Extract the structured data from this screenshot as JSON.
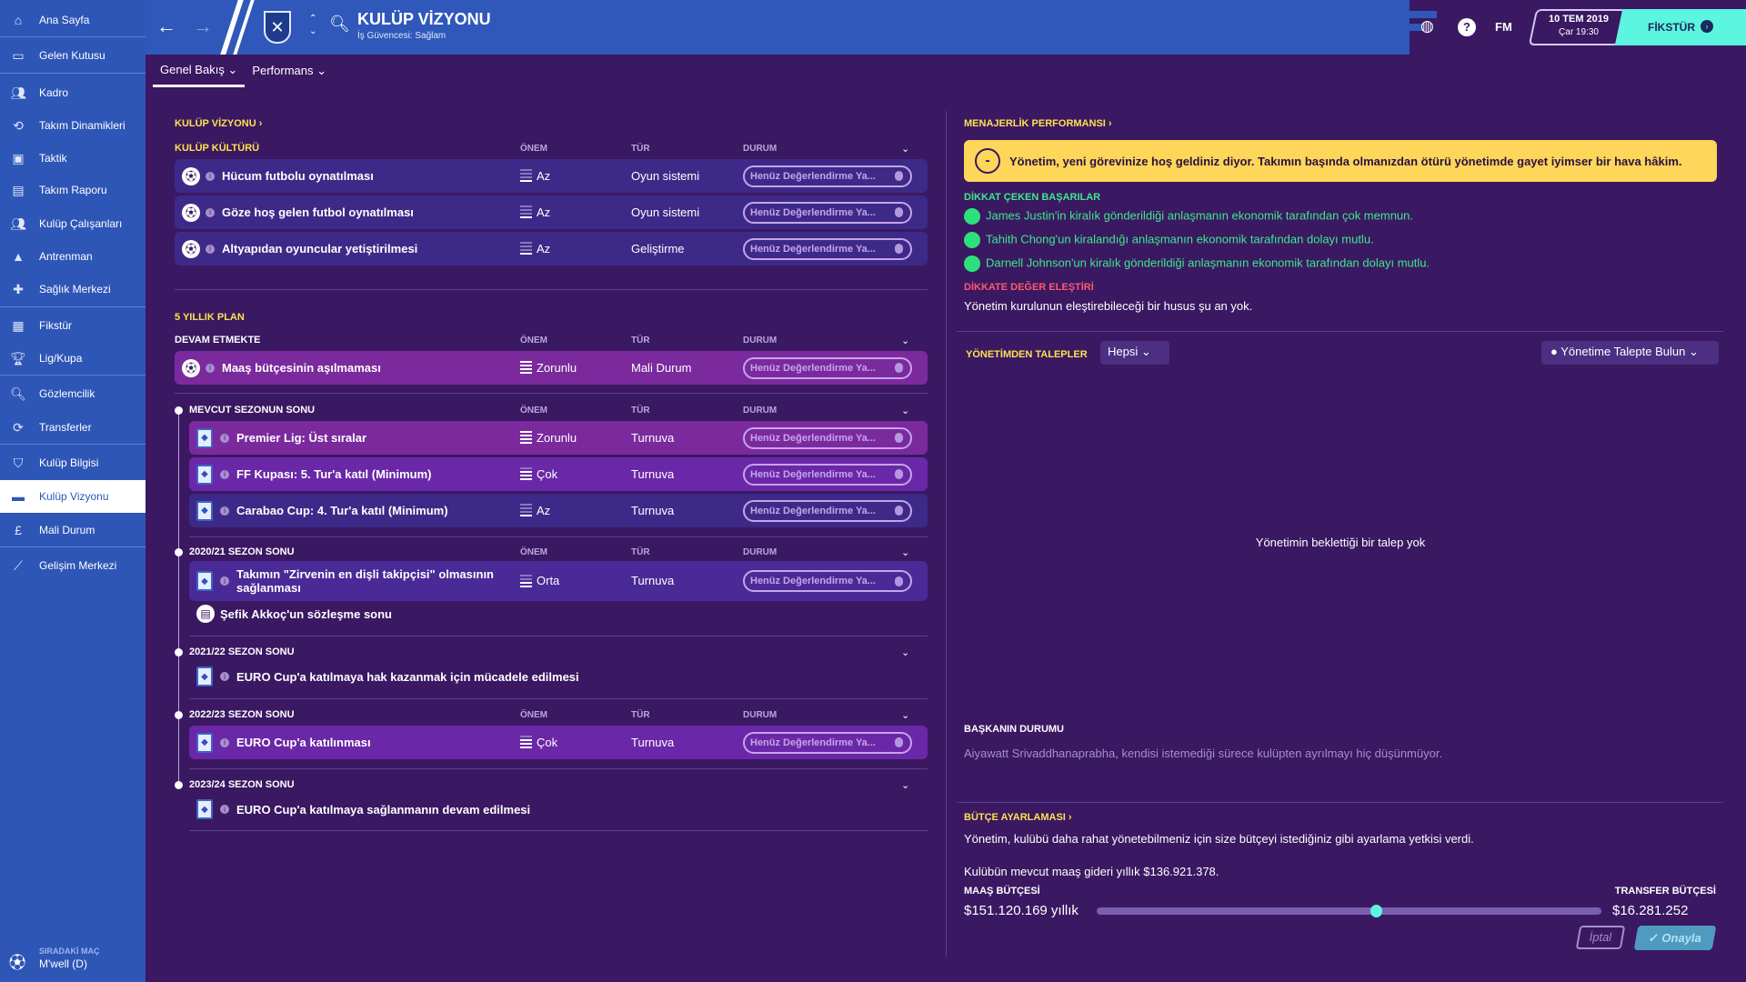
{
  "sidebar": {
    "items": [
      {
        "label": "Ana Sayfa",
        "icon": "home-icon"
      },
      {
        "label": "Gelen Kutusu",
        "icon": "inbox-icon"
      },
      {
        "label": "Kadro",
        "icon": "squad-icon"
      },
      {
        "label": "Takım Dinamikleri",
        "icon": "dynamics-icon"
      },
      {
        "label": "Taktik",
        "icon": "tactics-icon"
      },
      {
        "label": "Takım Raporu",
        "icon": "report-icon"
      },
      {
        "label": "Kulüp Çalışanları",
        "icon": "staff-icon"
      },
      {
        "label": "Antrenman",
        "icon": "training-icon"
      },
      {
        "label": "Sağlık Merkezi",
        "icon": "medical-icon"
      },
      {
        "label": "Fikstür",
        "icon": "calendar-icon"
      },
      {
        "label": "Lig/Kupa",
        "icon": "trophy-icon"
      },
      {
        "label": "Gözlemcilik",
        "icon": "search-icon"
      },
      {
        "label": "Transferler",
        "icon": "transfer-icon"
      },
      {
        "label": "Kulüp Bilgisi",
        "icon": "shield-icon"
      },
      {
        "label": "Kulüp Vizyonu",
        "icon": "briefcase-icon",
        "active": true
      },
      {
        "label": "Mali Durum",
        "icon": "money-icon"
      },
      {
        "label": "Gelişim Merkezi",
        "icon": "development-icon"
      }
    ],
    "next_match_label": "SIRADAKİ MAÇ",
    "next_match": "M'well (D)"
  },
  "header": {
    "title": "KULÜP VİZYONU",
    "subtitle": "İş Güvencesi: Sağlam",
    "fm": "FM",
    "date": "10 TEM 2019",
    "time": "Çar 19:30",
    "continue": "FİKSTÜR"
  },
  "tabs": [
    {
      "label": "Genel Bakış ⌄"
    },
    {
      "label": "Performans ⌄"
    }
  ],
  "left": {
    "vision_title": "KULÜP VİZYONU ›",
    "columns": {
      "importance": "ÖNEM",
      "type": "TÜR",
      "status": "DURUM"
    },
    "status_text": "Henüz Değerlendirme Ya...",
    "culture_title": "KULÜP KÜLTÜRÜ",
    "culture": [
      {
        "text": "Hücum futbolu oynatılması",
        "importance": "Az",
        "type": "Oyun sistemi"
      },
      {
        "text": "Göze hoş gelen futbol oynatılması",
        "importance": "Az",
        "type": "Oyun sistemi"
      },
      {
        "text": "Altyapıdan oyuncular yetiştirilmesi",
        "importance": "Az",
        "type": "Geliştirme"
      }
    ],
    "plan_title": "5 YILLIK PLAN",
    "ongoing_title": "DEVAM ETMEKTE",
    "ongoing": [
      {
        "text": "Maaş bütçesinin aşılmaması",
        "importance": "Zorunlu",
        "type": "Mali Durum"
      }
    ],
    "current_title": "MEVCUT SEZONUN SONU",
    "current": [
      {
        "text": "Premier Lig: Üst sıralar",
        "importance": "Zorunlu",
        "type": "Turnuva"
      },
      {
        "text": "FF Kupası: 5. Tur'a katıl (Minimum)",
        "importance": "Çok",
        "type": "Turnuva"
      },
      {
        "text": "Carabao Cup: 4. Tur'a katıl (Minimum)",
        "importance": "Az",
        "type": "Turnuva"
      }
    ],
    "s2021_title": "2020/21 SEZON SONU",
    "s2021": [
      {
        "text": "Takımın \"Zirvenin en dişli takipçisi\" olmasının sağlanması",
        "importance": "Orta",
        "type": "Turnuva"
      }
    ],
    "s2021_note": "Şefik Akkoç'un sözleşme sonu",
    "s2122_title": "2021/22 SEZON SONU",
    "s2122": "EURO Cup'a katılmaya hak kazanmak için mücadele edilmesi",
    "s2223_title": "2022/23 SEZON SONU",
    "s2223": [
      {
        "text": "EURO Cup'a katılınması",
        "importance": "Çok",
        "type": "Turnuva"
      }
    ],
    "s2324_title": "2023/24 SEZON SONU",
    "s2324": "EURO Cup'a katılmaya sağlanmanın devam edilmesi"
  },
  "right": {
    "perf_title": "MENAJERLİK PERFORMANSI ›",
    "board_msg": "Yönetim, yeni görevinize hoş geldiniz diyor. Takımın başında olmanızdan ötürü yönetimde gayet iyimser bir hava hâkim.",
    "achievements_title": "DİKKAT ÇEKEN BAŞARILAR",
    "achievements": [
      "James Justin'in kiralık gönderildiği anlaşmanın ekonomik tarafından çok memnun.",
      "Tahith Chong'un kiralandığı anlaşmanın ekonomik tarafından dolayı mutlu.",
      "Darnell Johnson'un kiralık gönderildiği anlaşmanın ekonomik tarafından dolayı mutlu."
    ],
    "criticism_title": "DİKKATE DEĞER ELEŞTİRİ",
    "criticism": "Yönetim kurulunun eleştirebileceği bir husus şu an yok.",
    "requests_title": "YÖNETİMDEN TALEPLER",
    "requests_filter": "Hepsi",
    "request_button": "Yönetime Talepte Bulun",
    "no_requests": "Yönetimin beklettiği bir talep yok",
    "chairman_title": "BAŞKANIN DURUMU",
    "chairman": "Aiyawatt Srivaddhanaprabha, kendisi istemediği sürece kulüpten ayrılmayı hiç düşünmüyor.",
    "budget_title": "BÜTÇE AYARLAMASI ›",
    "budget_text": "Yönetim, kulübü daha rahat yönetebilmeniz için size bütçeyi istediğiniz gibi ayarlama yetkisi verdi.",
    "wage_current": "Kulübün mevcut maaş gideri yıllık $136.921.378.",
    "wage_label": "MAAŞ BÜTÇESİ",
    "wage_value": "$151.120.169 yıllık",
    "transfer_label": "TRANSFER BÜTÇESİ",
    "transfer_value": "$16.281.252",
    "slider_fraction": 0.553,
    "cancel": "İptal",
    "confirm": "✓ Onayla"
  },
  "colors": {
    "sidebar": "#2e56b7",
    "background": "#3a1862",
    "accent": "#5cf5e0",
    "heading": "#ffe14d",
    "success": "#3ee88a",
    "critical": "#ff5a6e"
  }
}
